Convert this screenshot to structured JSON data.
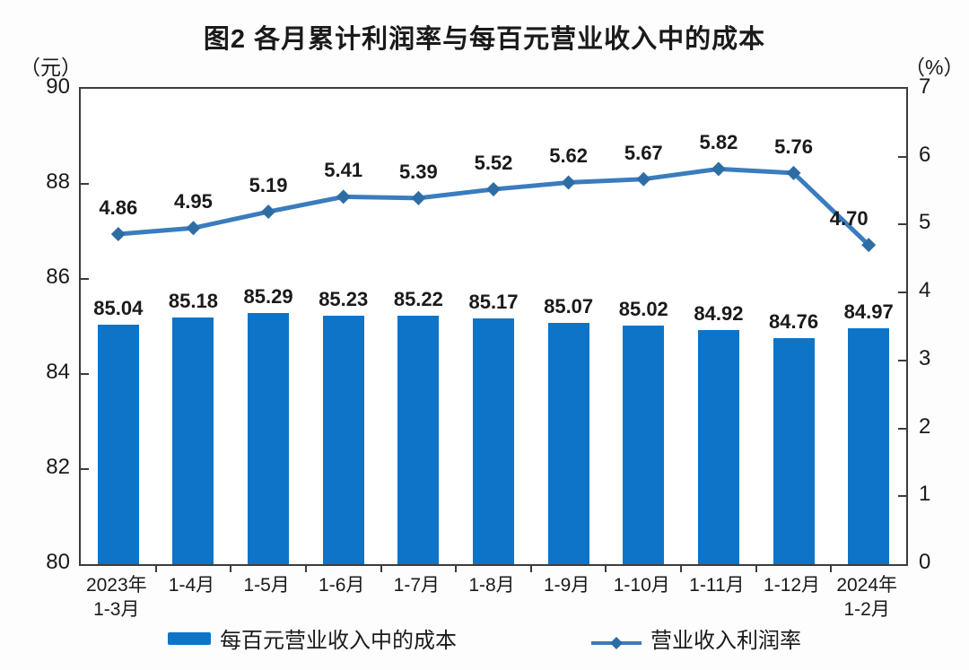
{
  "chart_data": {
    "type": "bar+line",
    "title": "图2 各月累计利润率与每百元营业收入中的成本",
    "categories": [
      "2023年\n1-3月",
      "1-4月",
      "1-5月",
      "1-6月",
      "1-7月",
      "1-8月",
      "1-9月",
      "1-10月",
      "1-11月",
      "1-12月",
      "2024年\n1-2月"
    ],
    "series": [
      {
        "name": "每百元营业收入中的成本",
        "type": "bar",
        "axis": "left",
        "values": [
          85.04,
          85.18,
          85.29,
          85.23,
          85.22,
          85.17,
          85.07,
          85.02,
          84.92,
          84.76,
          84.97
        ],
        "color": "#0d74c8"
      },
      {
        "name": "营业收入利润率",
        "type": "line",
        "axis": "right",
        "values": [
          4.86,
          4.95,
          5.19,
          5.41,
          5.39,
          5.52,
          5.62,
          5.67,
          5.82,
          5.76,
          4.7
        ],
        "color": "#3a7cbe",
        "marker_color": "#2e6da4"
      }
    ],
    "left_axis": {
      "unit": "（元）",
      "min": 80,
      "max": 90,
      "ticks": [
        90,
        88,
        86,
        84,
        82,
        80
      ]
    },
    "right_axis": {
      "unit": "（%）",
      "min": 0,
      "max": 7,
      "ticks": [
        7,
        6,
        5,
        4,
        3,
        2,
        1,
        0
      ]
    },
    "grid": "off",
    "legend_position": "bottom"
  },
  "colors": {
    "axis": "#3c3c3c",
    "text": "#1a1a1a",
    "background": "#fdfdfd"
  }
}
